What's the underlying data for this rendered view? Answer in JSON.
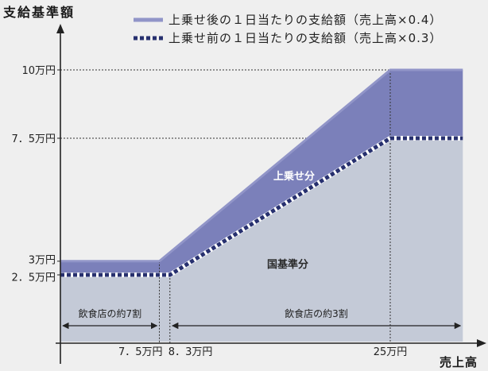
{
  "chart_data": {
    "type": "area",
    "ylabel": "支給基準額",
    "xlabel": "売上高",
    "xlim": [
      0,
      30.5
    ],
    "ylim": [
      0,
      11.5
    ],
    "grid": false,
    "legend": "top",
    "series": [
      {
        "name": "上乗せ後の１日当たりの支給額（売上高×0.4）",
        "points": [
          [
            0,
            3
          ],
          [
            7.5,
            3
          ],
          [
            25,
            10
          ]
        ],
        "color": "#9195c8",
        "style": "solid"
      },
      {
        "name": "上乗せ前の１日当たりの支給額（売上高×0.3）",
        "points": [
          [
            0,
            2.5
          ],
          [
            8.3,
            2.5
          ],
          [
            25,
            7.5
          ]
        ],
        "color": "#27306f",
        "style": "dotted"
      }
    ],
    "y_ticks": [
      {
        "value": 10,
        "label": "10万円"
      },
      {
        "value": 7.5,
        "label": "7．5万円"
      },
      {
        "value": 3,
        "label": "3万円"
      },
      {
        "value": 2.5,
        "label": "2．5万円"
      }
    ],
    "x_ticks": [
      {
        "value": 7.5,
        "label": "7．5万円"
      },
      {
        "value": 8.3,
        "label": "8．3万円"
      },
      {
        "value": 25,
        "label": "25万円"
      }
    ],
    "areas": [
      {
        "label": "上乗せ分",
        "color": "#7b80ba",
        "text_color": "#ffffff"
      },
      {
        "label": "国基準分",
        "color": "#c4cad7",
        "text_color": "#2a2a2a"
      }
    ],
    "ranges": [
      {
        "label": "飲食店の約7割",
        "from": 0,
        "to": 7.5
      },
      {
        "label": "飲食店の約3割",
        "from": 8.3
      }
    ]
  }
}
